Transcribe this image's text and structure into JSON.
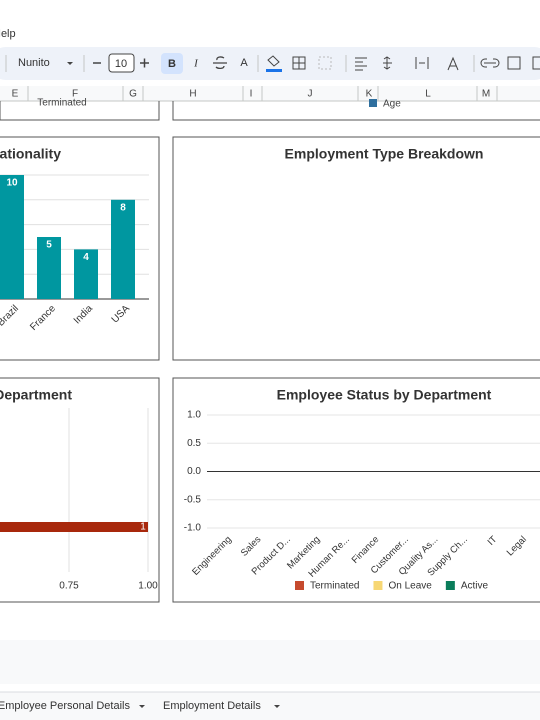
{
  "menu": {
    "help": "Help"
  },
  "toolbar": {
    "font": "Nunito",
    "font_size": "10",
    "bold": "B",
    "italic": "I",
    "text_color": "A"
  },
  "columns": [
    "E",
    "F",
    "G",
    "H",
    "I",
    "J",
    "K",
    "L",
    "M"
  ],
  "cells": {
    "terminated": "Terminated",
    "age": "Age"
  },
  "charts": [
    {
      "type": "bar",
      "title": "Nationality",
      "categories": [
        "Brazil",
        "France",
        "India",
        "USA"
      ],
      "values": [
        10,
        5,
        4,
        8
      ],
      "color": "#0097a0",
      "ylim": [
        0,
        10
      ],
      "gridlines": [
        0,
        2,
        4,
        6,
        8,
        10
      ]
    },
    {
      "type": "empty",
      "title": "Employment Type Breakdown"
    },
    {
      "type": "hbar",
      "title": "Department",
      "values": [
        1
      ],
      "color": "#a8280c",
      "xlim": [
        0,
        1
      ],
      "xticks": [
        0.75,
        {
          "value": 1,
          "label": "1.00"
        }
      ]
    },
    {
      "type": "stacked",
      "title": "Employee Status by Department",
      "categories": [
        "Engineering",
        "Sales",
        "Product D...",
        "Marketing",
        "Human Re...",
        "Finance",
        "Customer...",
        "Quality As...",
        "Supply Ch...",
        "IT",
        "Legal"
      ],
      "ylim": [
        -1,
        1
      ],
      "yticks": [
        {
          "value": 1,
          "label": "1.0"
        },
        {
          "value": 0.5,
          "label": "0.5"
        },
        {
          "value": 0,
          "label": "0.0"
        },
        {
          "value": -0.5,
          "label": "-0.5"
        },
        {
          "value": -1,
          "label": "-1.0"
        }
      ],
      "series": [
        {
          "name": "Terminated",
          "color": "#c64a2e"
        },
        {
          "name": "On Leave",
          "color": "#f7d774"
        },
        {
          "name": "Active",
          "color": "#0b7d5b"
        }
      ]
    }
  ],
  "tabs": [
    "Employee Personal Details",
    "Employment Details"
  ]
}
